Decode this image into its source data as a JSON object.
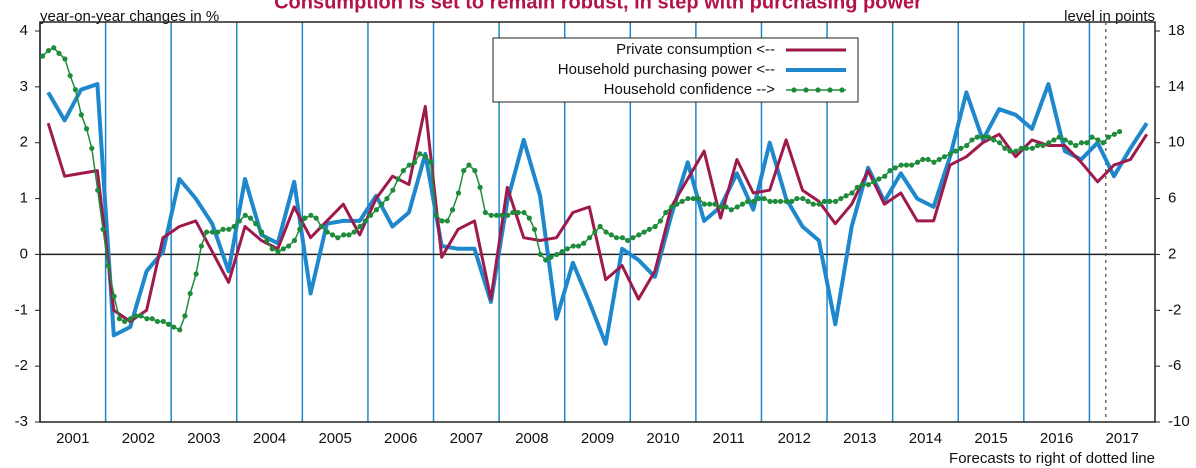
{
  "chart_data": {
    "type": "line",
    "title": "Consumption is set to remain robust, in step with purchasing power",
    "y_label": "year-on-year changes in %",
    "y2_label": "level in points",
    "annotation": "Forecasts to right of dotted line",
    "forecast_start": 2017.25,
    "xlim": [
      2001,
      2018
    ],
    "xticks": [
      {
        "value": 2001.5,
        "label": "2001"
      },
      {
        "value": 2002.5,
        "label": "2002"
      },
      {
        "value": 2003.5,
        "label": "2003"
      },
      {
        "value": 2004.5,
        "label": "2004"
      },
      {
        "value": 2005.5,
        "label": "2005"
      },
      {
        "value": 2006.5,
        "label": "2006"
      },
      {
        "value": 2007.5,
        "label": "2007"
      },
      {
        "value": 2008.5,
        "label": "2008"
      },
      {
        "value": 2009.5,
        "label": "2009"
      },
      {
        "value": 2010.5,
        "label": "2010"
      },
      {
        "value": 2011.5,
        "label": "2011"
      },
      {
        "value": 2012.5,
        "label": "2012"
      },
      {
        "value": 2013.5,
        "label": "2013"
      },
      {
        "value": 2014.5,
        "label": "2014"
      },
      {
        "value": 2015.5,
        "label": "2015"
      },
      {
        "value": 2016.5,
        "label": "2016"
      },
      {
        "value": 2017.5,
        "label": "2017"
      }
    ],
    "ylim": [
      -3,
      4
    ],
    "yticks": [
      -3,
      -2,
      -1,
      0,
      1,
      2,
      3,
      4
    ],
    "y2lim": [
      -10,
      18
    ],
    "y2ticks": [
      -10,
      -6,
      -2,
      2,
      6,
      10,
      14,
      18
    ],
    "grid": true,
    "legend": "top-center",
    "series": [
      {
        "name": "Private consumption <--",
        "color": "#9e1a4c",
        "axis": "y",
        "x": [
          2001.125,
          2001.375,
          2001.625,
          2001.875,
          2002.125,
          2002.375,
          2002.625,
          2002.875,
          2003.125,
          2003.375,
          2003.625,
          2003.875,
          2004.125,
          2004.375,
          2004.625,
          2004.875,
          2005.125,
          2005.375,
          2005.625,
          2005.875,
          2006.125,
          2006.375,
          2006.625,
          2006.875,
          2007.125,
          2007.375,
          2007.625,
          2007.875,
          2008.125,
          2008.375,
          2008.625,
          2008.875,
          2009.125,
          2009.375,
          2009.625,
          2009.875,
          2010.125,
          2010.375,
          2010.625,
          2010.875,
          2011.125,
          2011.375,
          2011.625,
          2011.875,
          2012.125,
          2012.375,
          2012.625,
          2012.875,
          2013.125,
          2013.375,
          2013.625,
          2013.875,
          2014.125,
          2014.375,
          2014.625,
          2014.875,
          2015.125,
          2015.375,
          2015.625,
          2015.875,
          2016.125,
          2016.375,
          2016.625,
          2016.875,
          2017.125,
          2017.375,
          2017.625,
          2017.875
        ],
        "values": [
          2.35,
          1.4,
          1.45,
          1.5,
          -1.0,
          -1.2,
          -1.0,
          0.3,
          0.5,
          0.6,
          0.05,
          -0.5,
          0.5,
          0.25,
          0.1,
          0.85,
          0.3,
          0.6,
          0.9,
          0.35,
          1.0,
          1.4,
          1.25,
          2.65,
          -0.05,
          0.45,
          0.6,
          -0.8,
          1.2,
          0.3,
          0.25,
          0.3,
          0.75,
          0.85,
          -0.45,
          -0.2,
          -0.8,
          -0.3,
          0.85,
          1.35,
          1.85,
          0.65,
          1.7,
          1.1,
          1.15,
          2.05,
          1.15,
          0.95,
          0.55,
          0.9,
          1.5,
          0.9,
          1.1,
          0.6,
          0.6,
          1.6,
          1.75,
          2.0,
          2.15,
          1.75,
          2.05,
          1.95,
          1.95,
          1.65,
          1.3,
          1.6,
          1.7,
          2.15
        ]
      },
      {
        "name": "Household purchasing power <--",
        "color": "#1f88cc",
        "axis": "y",
        "x": [
          2001.125,
          2001.375,
          2001.625,
          2001.875,
          2002.125,
          2002.375,
          2002.625,
          2002.875,
          2003.125,
          2003.375,
          2003.625,
          2003.875,
          2004.125,
          2004.375,
          2004.625,
          2004.875,
          2005.125,
          2005.375,
          2005.625,
          2005.875,
          2006.125,
          2006.375,
          2006.625,
          2006.875,
          2007.125,
          2007.375,
          2007.625,
          2007.875,
          2008.125,
          2008.375,
          2008.625,
          2008.875,
          2009.125,
          2009.375,
          2009.625,
          2009.875,
          2010.125,
          2010.375,
          2010.625,
          2010.875,
          2011.125,
          2011.375,
          2011.625,
          2011.875,
          2012.125,
          2012.375,
          2012.625,
          2012.875,
          2013.125,
          2013.375,
          2013.625,
          2013.875,
          2014.125,
          2014.375,
          2014.625,
          2014.875,
          2015.125,
          2015.375,
          2015.625,
          2015.875,
          2016.125,
          2016.375,
          2016.625,
          2016.875,
          2017.125,
          2017.375,
          2017.625,
          2017.875
        ],
        "values": [
          2.9,
          2.4,
          2.95,
          3.05,
          -1.45,
          -1.3,
          -0.3,
          0.05,
          1.35,
          1.0,
          0.55,
          -0.3,
          1.35,
          0.35,
          0.2,
          1.3,
          -0.7,
          0.55,
          0.6,
          0.6,
          1.05,
          0.5,
          0.75,
          1.8,
          0.15,
          0.1,
          0.1,
          -0.85,
          0.95,
          2.05,
          1.05,
          -1.15,
          -0.15,
          -0.85,
          -1.6,
          0.1,
          -0.1,
          -0.4,
          0.7,
          1.65,
          0.6,
          0.85,
          1.45,
          0.8,
          2.0,
          1.0,
          0.5,
          0.25,
          -1.25,
          0.5,
          1.55,
          0.95,
          1.45,
          1.0,
          0.85,
          1.75,
          2.9,
          2.05,
          2.6,
          2.5,
          2.25,
          3.05,
          1.85,
          1.7,
          2.0,
          1.4,
          1.9,
          2.35
        ]
      },
      {
        "name": "Household confidence -->",
        "color": "#1e8c3a",
        "axis": "y2",
        "markers": true,
        "x": [
          2001.04,
          2001.13,
          2001.21,
          2001.29,
          2001.38,
          2001.46,
          2001.54,
          2001.63,
          2001.71,
          2001.79,
          2001.88,
          2001.96,
          2002.04,
          2002.13,
          2002.21,
          2002.29,
          2002.38,
          2002.46,
          2002.54,
          2002.63,
          2002.71,
          2002.79,
          2002.88,
          2002.96,
          2003.04,
          2003.13,
          2003.21,
          2003.29,
          2003.38,
          2003.46,
          2003.54,
          2003.63,
          2003.71,
          2003.79,
          2003.88,
          2003.96,
          2004.04,
          2004.13,
          2004.21,
          2004.29,
          2004.38,
          2004.46,
          2004.54,
          2004.63,
          2004.71,
          2004.79,
          2004.88,
          2004.96,
          2005.04,
          2005.13,
          2005.21,
          2005.29,
          2005.38,
          2005.46,
          2005.54,
          2005.63,
          2005.71,
          2005.79,
          2005.88,
          2005.96,
          2006.04,
          2006.13,
          2006.21,
          2006.29,
          2006.38,
          2006.46,
          2006.54,
          2006.63,
          2006.71,
          2006.79,
          2006.88,
          2006.96,
          2007.04,
          2007.13,
          2007.21,
          2007.29,
          2007.38,
          2007.46,
          2007.54,
          2007.63,
          2007.71,
          2007.79,
          2007.88,
          2007.96,
          2008.04,
          2008.13,
          2008.21,
          2008.29,
          2008.38,
          2008.46,
          2008.54,
          2008.63,
          2008.71,
          2008.79,
          2008.88,
          2008.96,
          2009.04,
          2009.13,
          2009.21,
          2009.29,
          2009.38,
          2009.46,
          2009.54,
          2009.63,
          2009.71,
          2009.79,
          2009.88,
          2009.96,
          2010.04,
          2010.13,
          2010.21,
          2010.29,
          2010.38,
          2010.46,
          2010.54,
          2010.63,
          2010.71,
          2010.79,
          2010.88,
          2010.96,
          2011.04,
          2011.13,
          2011.21,
          2011.29,
          2011.38,
          2011.46,
          2011.54,
          2011.63,
          2011.71,
          2011.79,
          2011.88,
          2011.96,
          2012.04,
          2012.13,
          2012.21,
          2012.29,
          2012.38,
          2012.46,
          2012.54,
          2012.63,
          2012.71,
          2012.79,
          2012.88,
          2012.96,
          2013.04,
          2013.13,
          2013.21,
          2013.29,
          2013.38,
          2013.46,
          2013.54,
          2013.63,
          2013.71,
          2013.79,
          2013.88,
          2013.96,
          2014.04,
          2014.13,
          2014.21,
          2014.29,
          2014.38,
          2014.46,
          2014.54,
          2014.63,
          2014.71,
          2014.79,
          2014.88,
          2014.96,
          2015.04,
          2015.13,
          2015.21,
          2015.29,
          2015.38,
          2015.46,
          2015.54,
          2015.63,
          2015.71,
          2015.79,
          2015.88,
          2015.96,
          2016.04,
          2016.13,
          2016.21,
          2016.29,
          2016.38,
          2016.46,
          2016.54,
          2016.63,
          2016.71,
          2016.79,
          2016.88,
          2016.96,
          2017.04,
          2017.13,
          2017.21,
          2017.29,
          2017.38,
          2017.46
        ],
        "values": [
          16.2,
          16.6,
          16.8,
          16.4,
          16.0,
          14.8,
          13.8,
          12.0,
          11.0,
          9.6,
          6.6,
          3.8,
          1.2,
          -1.0,
          -2.6,
          -2.8,
          -2.6,
          -2.4,
          -2.4,
          -2.6,
          -2.6,
          -2.8,
          -2.8,
          -3.0,
          -3.2,
          -3.4,
          -2.4,
          -0.8,
          0.6,
          2.6,
          3.6,
          3.6,
          3.6,
          3.8,
          3.8,
          4.0,
          4.4,
          4.8,
          4.6,
          4.2,
          3.6,
          3.0,
          2.4,
          2.2,
          2.4,
          2.6,
          3.0,
          3.8,
          4.6,
          4.8,
          4.6,
          4.0,
          3.6,
          3.4,
          3.2,
          3.4,
          3.4,
          3.6,
          4.0,
          4.4,
          4.8,
          5.2,
          5.6,
          6.0,
          6.6,
          7.4,
          8.0,
          8.4,
          8.6,
          9.2,
          9.0,
          8.6,
          4.8,
          4.4,
          4.4,
          5.2,
          6.4,
          8.0,
          8.4,
          8.0,
          6.8,
          5.0,
          4.8,
          4.8,
          4.8,
          4.8,
          5.0,
          5.0,
          5.0,
          4.6,
          3.8,
          2.0,
          1.6,
          1.8,
          2.0,
          2.2,
          2.4,
          2.6,
          2.6,
          2.8,
          3.2,
          3.6,
          4.0,
          3.6,
          3.4,
          3.2,
          3.2,
          3.0,
          3.2,
          3.4,
          3.6,
          3.8,
          4.0,
          4.4,
          5.0,
          5.4,
          5.6,
          5.8,
          6.0,
          6.0,
          6.0,
          5.6,
          5.6,
          5.6,
          5.4,
          5.4,
          5.2,
          5.4,
          5.6,
          5.8,
          5.8,
          6.0,
          6.0,
          5.8,
          5.8,
          5.8,
          5.8,
          5.8,
          6.0,
          6.0,
          5.8,
          5.6,
          5.6,
          5.8,
          5.8,
          5.8,
          6.0,
          6.2,
          6.4,
          6.8,
          7.0,
          7.0,
          7.2,
          7.4,
          7.6,
          8.0,
          8.2,
          8.4,
          8.4,
          8.4,
          8.6,
          8.8,
          8.8,
          8.6,
          8.8,
          9.0,
          9.2,
          9.4,
          9.6,
          9.8,
          10.2,
          10.4,
          10.4,
          10.4,
          10.2,
          10.0,
          9.6,
          9.4,
          9.4,
          9.6,
          9.6,
          9.6,
          9.8,
          9.8,
          10.0,
          10.2,
          10.4,
          10.2,
          10.0,
          9.8,
          10.0,
          10.0,
          10.4,
          10.2,
          10.0,
          10.4,
          10.6,
          10.8
        ]
      }
    ]
  }
}
